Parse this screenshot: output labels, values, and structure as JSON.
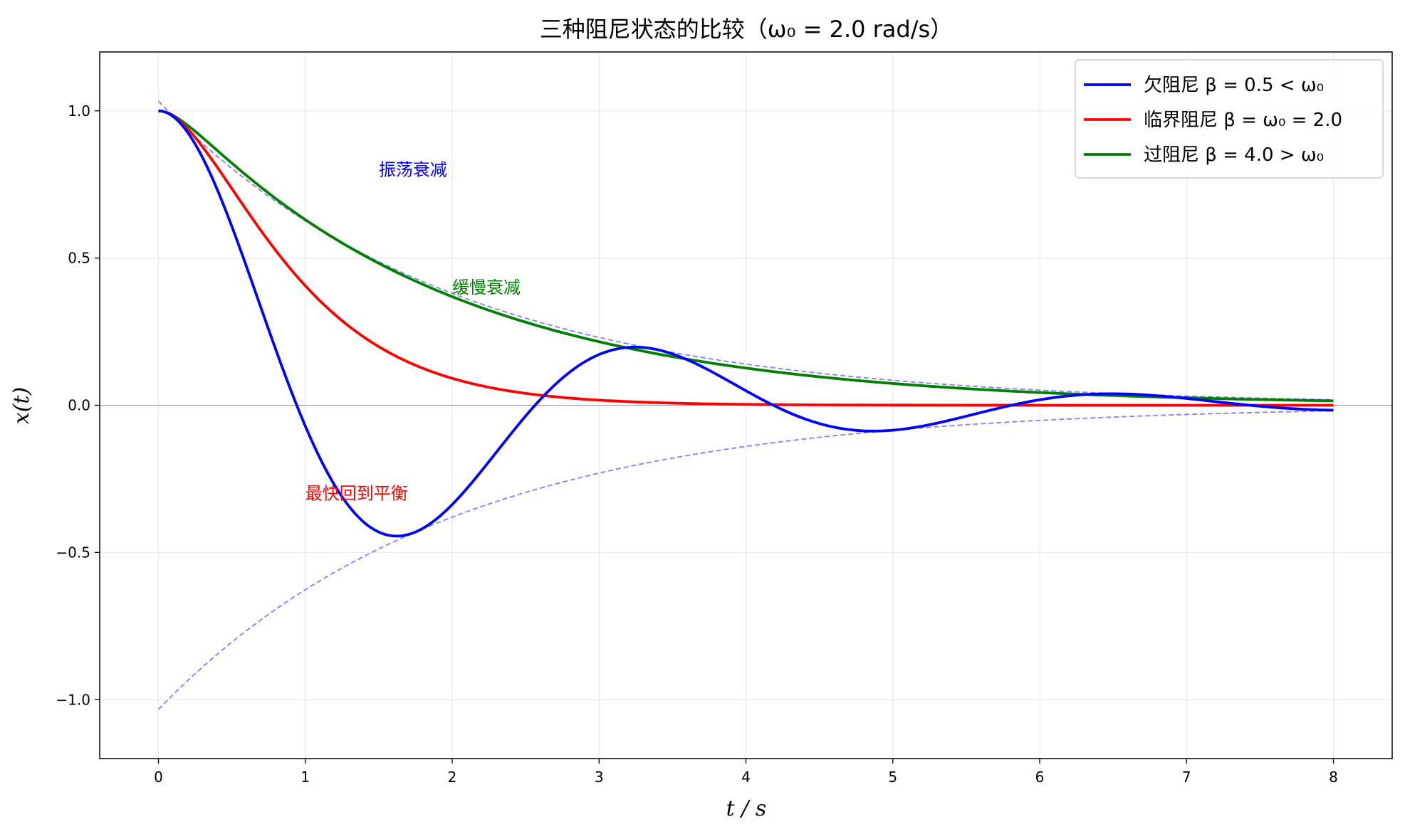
{
  "chart_data": {
    "type": "line",
    "title": "三种阻尼状态的比较（ω₀ = 2.0 rad/s）",
    "xlabel": "t / s",
    "ylabel": "x(t)",
    "xlim": [
      -0.4,
      8.4
    ],
    "ylim": [
      -1.2,
      1.2
    ],
    "xticks": [
      0,
      1,
      2,
      3,
      4,
      5,
      6,
      7,
      8
    ],
    "yticks": [
      -1.0,
      -0.5,
      0.0,
      0.5,
      1.0
    ],
    "xtick_labels": [
      "0",
      "1",
      "2",
      "3",
      "4",
      "5",
      "6",
      "7",
      "8"
    ],
    "ytick_labels": [
      "−1.0",
      "−0.5",
      "0.0",
      "0.5",
      "1.0"
    ],
    "grid": true,
    "legend_position": "top-right",
    "omega0": 2.0,
    "series": [
      {
        "name": "欠阻尼 β = 0.5 < ω₀",
        "color": "#0000ff",
        "beta": 0.5,
        "regime": "under",
        "x": [
          0,
          0.5,
          1.0,
          1.5,
          2.0,
          2.5,
          3.0,
          3.5,
          4.0,
          4.5,
          5.0,
          5.5,
          6.0,
          6.5,
          7.0,
          7.5,
          8.0
        ],
        "y": [
          1.0,
          0.62,
          -0.24,
          -0.43,
          -0.33,
          -0.06,
          0.18,
          0.17,
          0.04,
          -0.07,
          -0.08,
          -0.04,
          0.02,
          0.04,
          0.03,
          0.0,
          -0.02
        ]
      },
      {
        "name": "临界阻尼 β = ω₀ = 2.0",
        "color": "#ff0000",
        "beta": 2.0,
        "regime": "critical",
        "x": [
          0,
          0.5,
          1.0,
          1.5,
          2.0,
          2.5,
          3.0,
          4.0,
          5.0,
          6.0,
          7.0,
          8.0
        ],
        "y": [
          1.0,
          0.74,
          0.41,
          0.2,
          0.09,
          0.04,
          0.02,
          0.003,
          0.0005,
          0.0,
          0.0,
          0.0
        ]
      },
      {
        "name": "过阻尼 β = 4.0 > ω₀",
        "color": "#008000",
        "beta": 4.0,
        "regime": "over",
        "x": [
          0,
          0.5,
          1.0,
          1.5,
          2.0,
          2.5,
          3.0,
          4.0,
          5.0,
          6.0,
          7.0,
          8.0
        ],
        "y": [
          1.0,
          0.82,
          0.61,
          0.47,
          0.36,
          0.28,
          0.21,
          0.12,
          0.07,
          0.04,
          0.03,
          0.02
        ]
      }
    ],
    "envelope": {
      "color": "#0000ff",
      "opacity": 0.5,
      "amplitude": 1.033,
      "decay": 0.5
    },
    "annotations": [
      {
        "text": "振荡衰减",
        "x": 1.5,
        "y": 0.8,
        "color": "#0000ff"
      },
      {
        "text": "缓慢衰减",
        "x": 2.0,
        "y": 0.4,
        "color": "#008000"
      },
      {
        "text": "最快回到平衡",
        "x": 1.0,
        "y": -0.3,
        "color": "#ff0000"
      }
    ]
  }
}
